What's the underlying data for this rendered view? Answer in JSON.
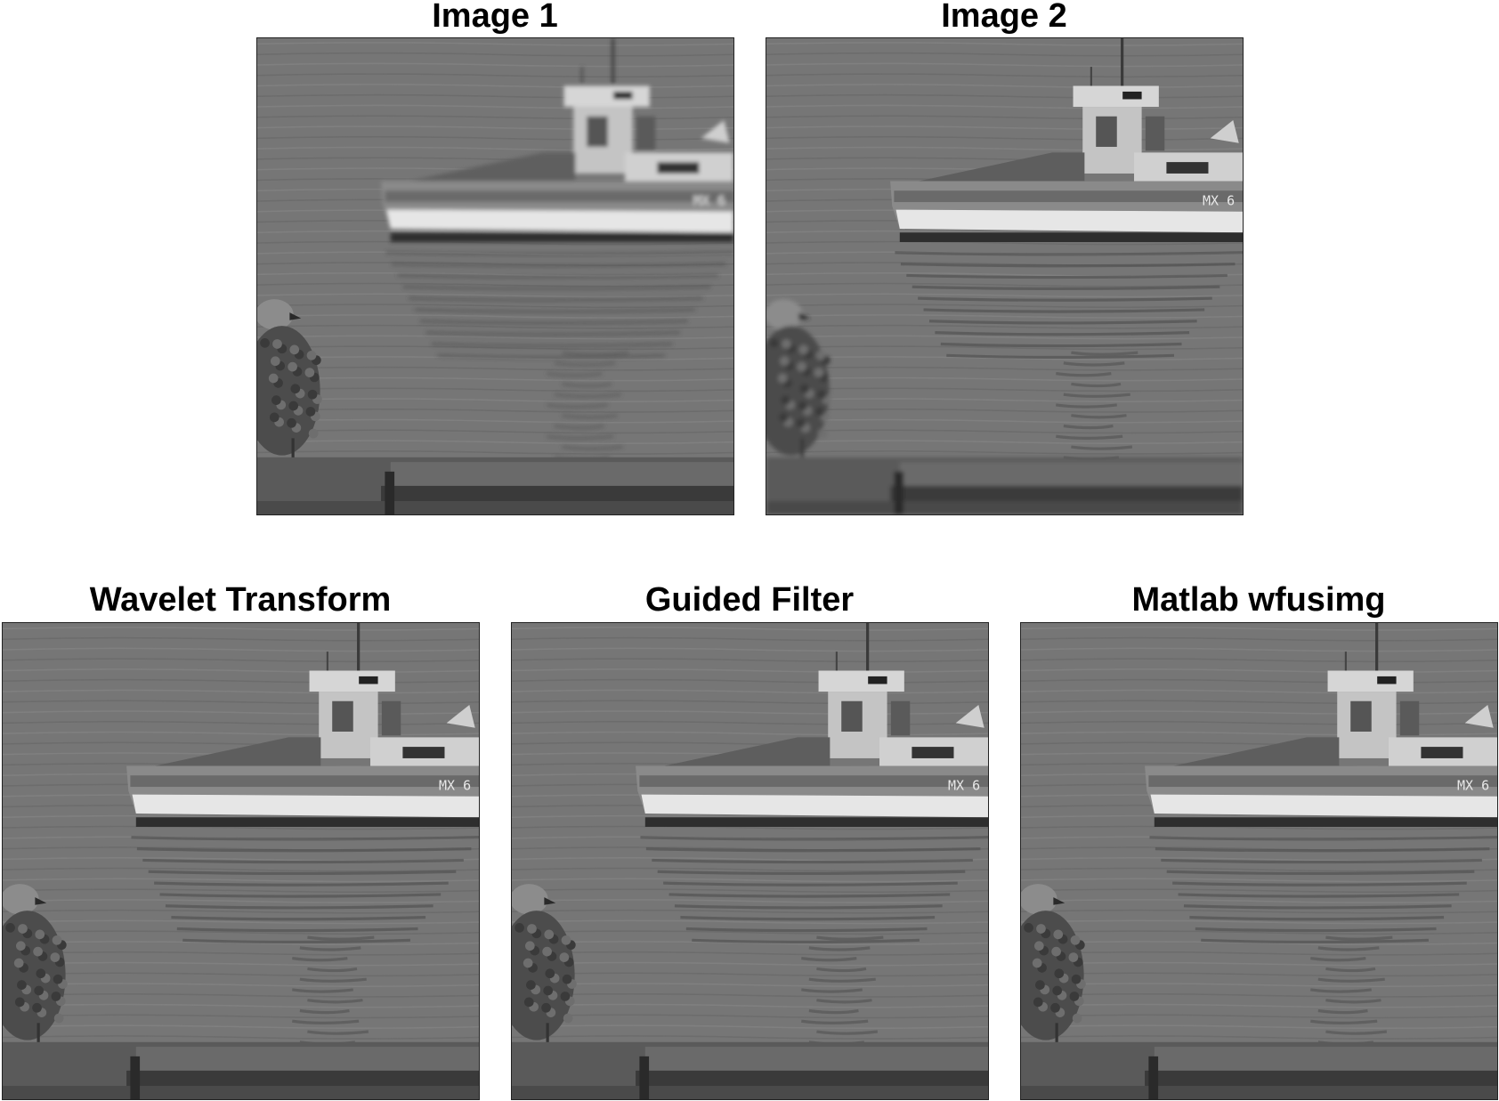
{
  "panels": [
    {
      "id": "img1",
      "title": "Image 1",
      "focus": "near",
      "boat_text": "MX 6"
    },
    {
      "id": "img2",
      "title": "Image 2",
      "focus": "far",
      "boat_text": "MX 6"
    },
    {
      "id": "wavelet",
      "title": "Wavelet Transform",
      "focus": "fused",
      "boat_text": "MX 6"
    },
    {
      "id": "guided",
      "title": "Guided Filter",
      "focus": "fused",
      "boat_text": "MX 6"
    },
    {
      "id": "matlab",
      "title": "Matlab wfusimg",
      "focus": "fused",
      "boat_text": "MX 6"
    }
  ]
}
